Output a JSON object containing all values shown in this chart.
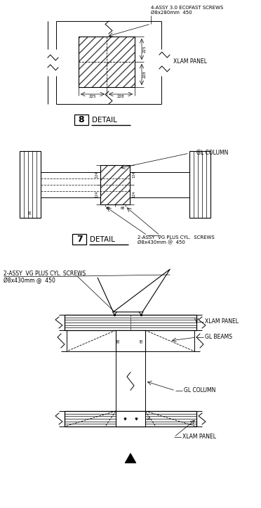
{
  "bg_color": "#ffffff",
  "line_color": "#000000",
  "fig_width": 3.72,
  "fig_height": 7.23,
  "dpi": 100,
  "annotations": {
    "detail8_screws": "4-ASSY 3.0 ECOFAST SCREWS\nØ8x280mm  450",
    "detail8_xlam": "XLAM PANEL",
    "detail7_glcol": "GL COLUMN",
    "detail7_screws": "2-ASSY  VG PLUS CYL.  SCREWS\nØ8x430mm @  450",
    "main_screws": "2-ASSY  VG PLUS CYL. SCREWS\nØ8x430mm @  450",
    "main_xlam_top": "XLAM PANEL",
    "main_glbeams": "GL BEAMS",
    "main_glcol": "GL COLUMN",
    "main_xlam_bot": "XLAM PANEL"
  }
}
